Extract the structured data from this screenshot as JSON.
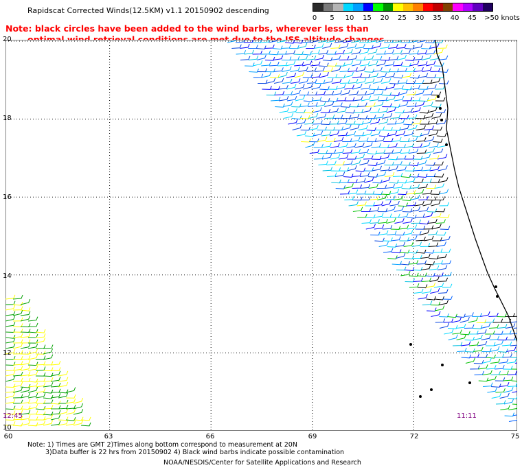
{
  "title": "Rapidscat Corrected Winds(12.5KM) v1.1 20150902 descending",
  "note": {
    "line1": "Note: black circles have been added to the wind barbs, wherever less than",
    "line2": "optimal wind retrieval conditions are met due to the ISS altitude changes."
  },
  "legend": {
    "labels": [
      "0",
      "5",
      "10",
      "15",
      "20",
      "25",
      "30",
      "35",
      "40",
      "45",
      ">50 knots"
    ],
    "colors": [
      "#2b2b2b",
      "#7a7a7a",
      "#b4b4b4",
      "#00d8ff",
      "#00a0ff",
      "#0000ff",
      "#00ff00",
      "#009000",
      "#ffff00",
      "#ffc000",
      "#ff8000",
      "#ff0000",
      "#c00000",
      "#804000",
      "#ff00ff",
      "#b000ff",
      "#6000c0",
      "#200060"
    ]
  },
  "axes": {
    "lat_labels": [
      "20",
      "18",
      "16",
      "14",
      "12",
      "10"
    ],
    "lon_labels": [
      "60",
      "63",
      "66",
      "69",
      "72",
      "75"
    ]
  },
  "pass_times": {
    "left": "12:45",
    "right": "11:11"
  },
  "footer": {
    "line1": "Note: 1) Times are GMT 2)Times along bottom correspond to measurement at 20N",
    "line2": "3)Data buffer is 22 hrs from 20150902 4) Black wind barbs indicate possible contamination",
    "credit": "NOAA/NESDIS/Center for Satellite Applications and Research"
  }
}
